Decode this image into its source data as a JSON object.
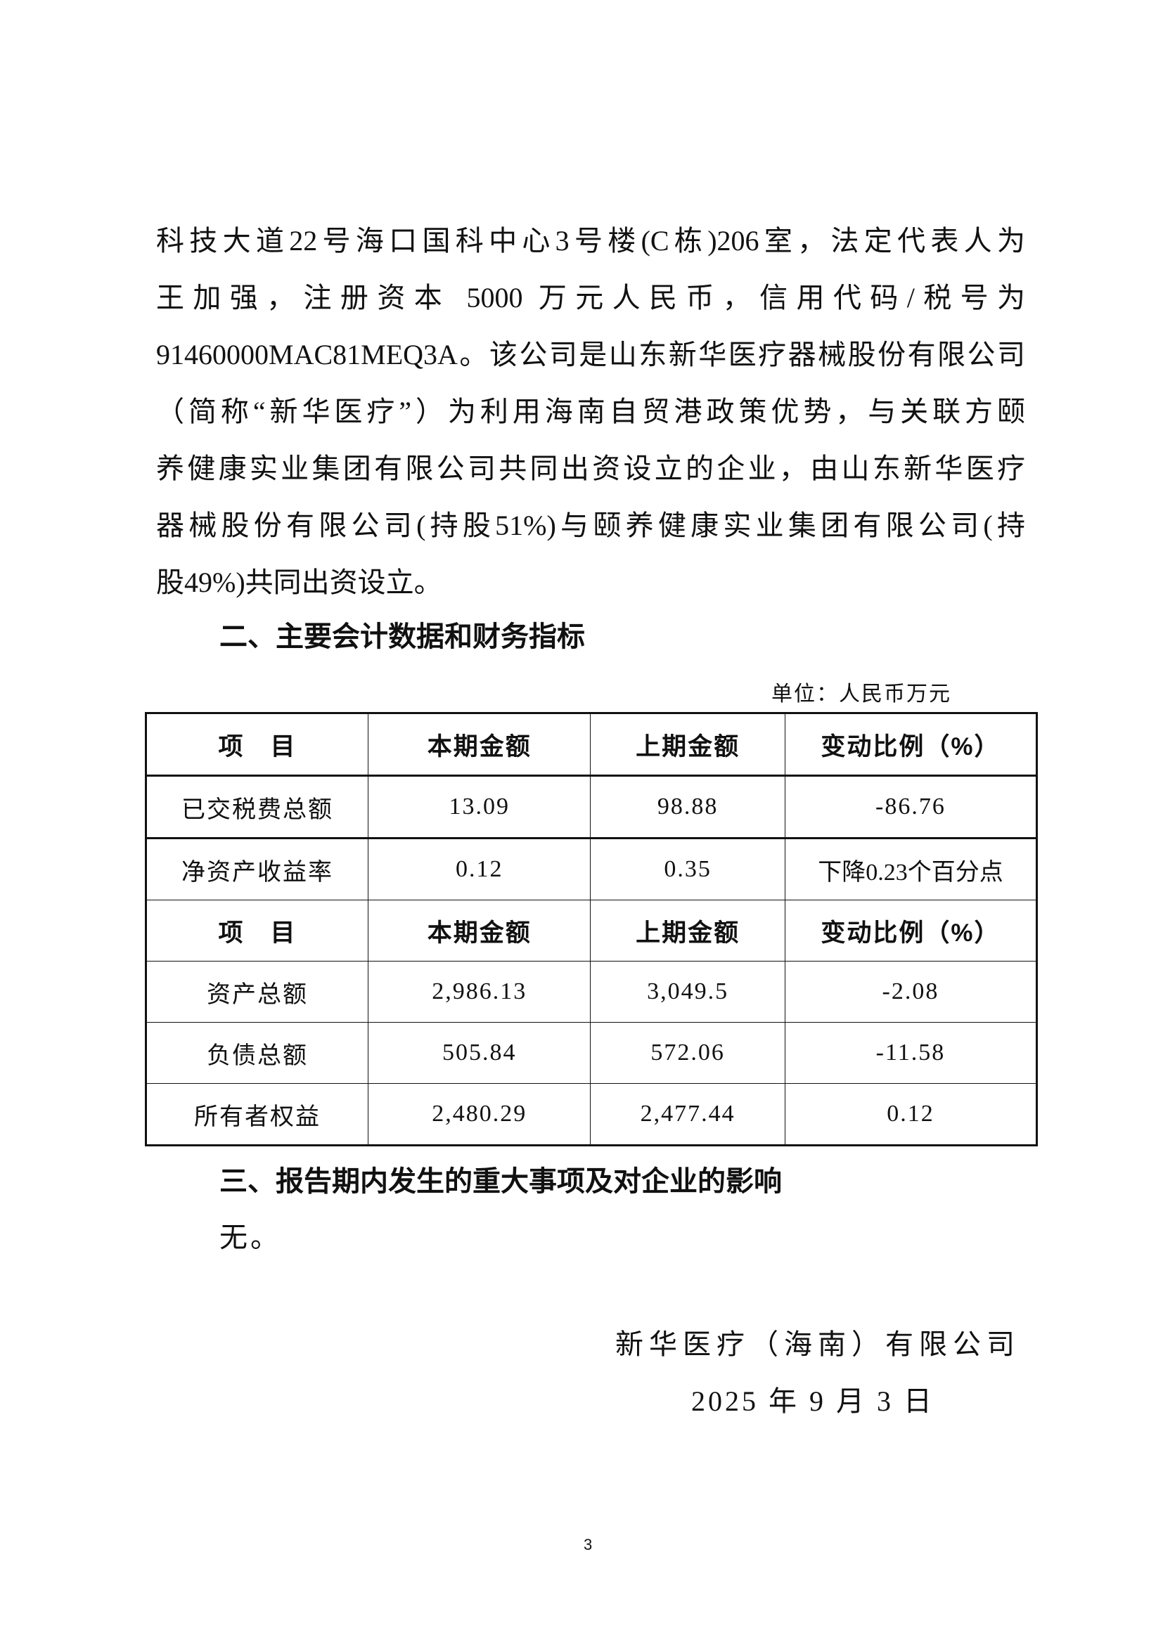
{
  "paragraph": {
    "lines": [
      "科技大道22号海口国科中心3号楼(C栋)206室，法定代表人为",
      "王加强，注册资本 5000 万元人民币，信用代码/税号为",
      "91460000MAC81MEQ3A。该公司是山东新华医疗器械股份有限公司",
      "（简称“新华医疗”）为利用海南自贸港政策优势，与关联方颐",
      "养健康实业集团有限公司共同出资设立的企业，由山东新华医疗",
      "器械股份有限公司(持股51%)与颐养健康实业集团有限公司(持",
      "股49%)共同出资设立。"
    ]
  },
  "section2": {
    "heading": "二、主要会计数据和财务指标",
    "unit": "单位：人民币万元",
    "table": {
      "header": [
        "项　目",
        "本期金额",
        "上期金额",
        "变动比例（%）"
      ],
      "rows1": [
        [
          "已交税费总额",
          "13.09",
          "98.88",
          "-86.76"
        ],
        [
          "净资产收益率",
          "0.12",
          "0.35",
          "下降0.23个百分点"
        ]
      ],
      "header2": [
        "项　目",
        "本期金额",
        "上期金额",
        "变动比例（%）"
      ],
      "rows2": [
        [
          "资产总额",
          "2,986.13",
          "3,049.5",
          "-2.08"
        ],
        [
          "负债总额",
          "505.84",
          "572.06",
          "-11.58"
        ],
        [
          "所有者权益",
          "2,480.29",
          "2,477.44",
          "0.12"
        ]
      ]
    }
  },
  "section3": {
    "heading": "三、报告期内发生的重大事项及对企业的影响",
    "body": "无。"
  },
  "signature": {
    "company": "新华医疗（海南）有限公司",
    "date": "2025 年 9 月 3 日"
  },
  "page_number": "3"
}
